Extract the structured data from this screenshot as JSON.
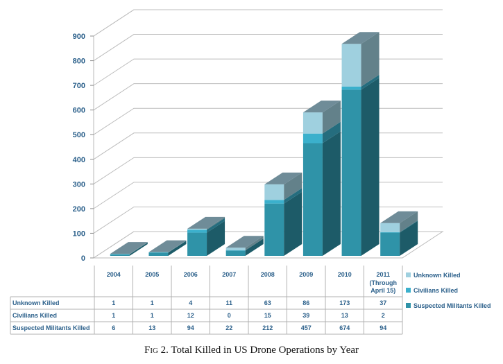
{
  "chart_data": {
    "type": "bar",
    "stacked": true,
    "three_d": true,
    "categories": [
      "2004",
      "2005",
      "2006",
      "2007",
      "2008",
      "2009",
      "2010",
      "2011"
    ],
    "category_sublabels": {
      "2011": [
        "(Through",
        "April 15)"
      ]
    },
    "series": [
      {
        "name": "Suspected Militants Killed",
        "values": [
          6,
          13,
          94,
          22,
          212,
          457,
          674,
          94
        ],
        "color": "#2f93a8"
      },
      {
        "name": "Civilians Killed",
        "values": [
          1,
          1,
          12,
          0,
          15,
          39,
          13,
          2
        ],
        "color": "#3bb0cc"
      },
      {
        "name": "Unknown Killed",
        "values": [
          1,
          1,
          4,
          11,
          63,
          86,
          173,
          37
        ],
        "color": "#9fd0df"
      }
    ],
    "ylim": [
      0,
      900
    ],
    "yticks": [
      0,
      100,
      200,
      300,
      400,
      500,
      600,
      700,
      800,
      900
    ],
    "grid": true,
    "legend_placement": "right",
    "data_table_row_order": [
      "Unknown Killed",
      "Civilians Killed",
      "Suspected Militants Killed"
    ]
  },
  "caption": {
    "prefix": "Fig 2.",
    "text": "Total Killed in US Drone Operations by Year"
  }
}
